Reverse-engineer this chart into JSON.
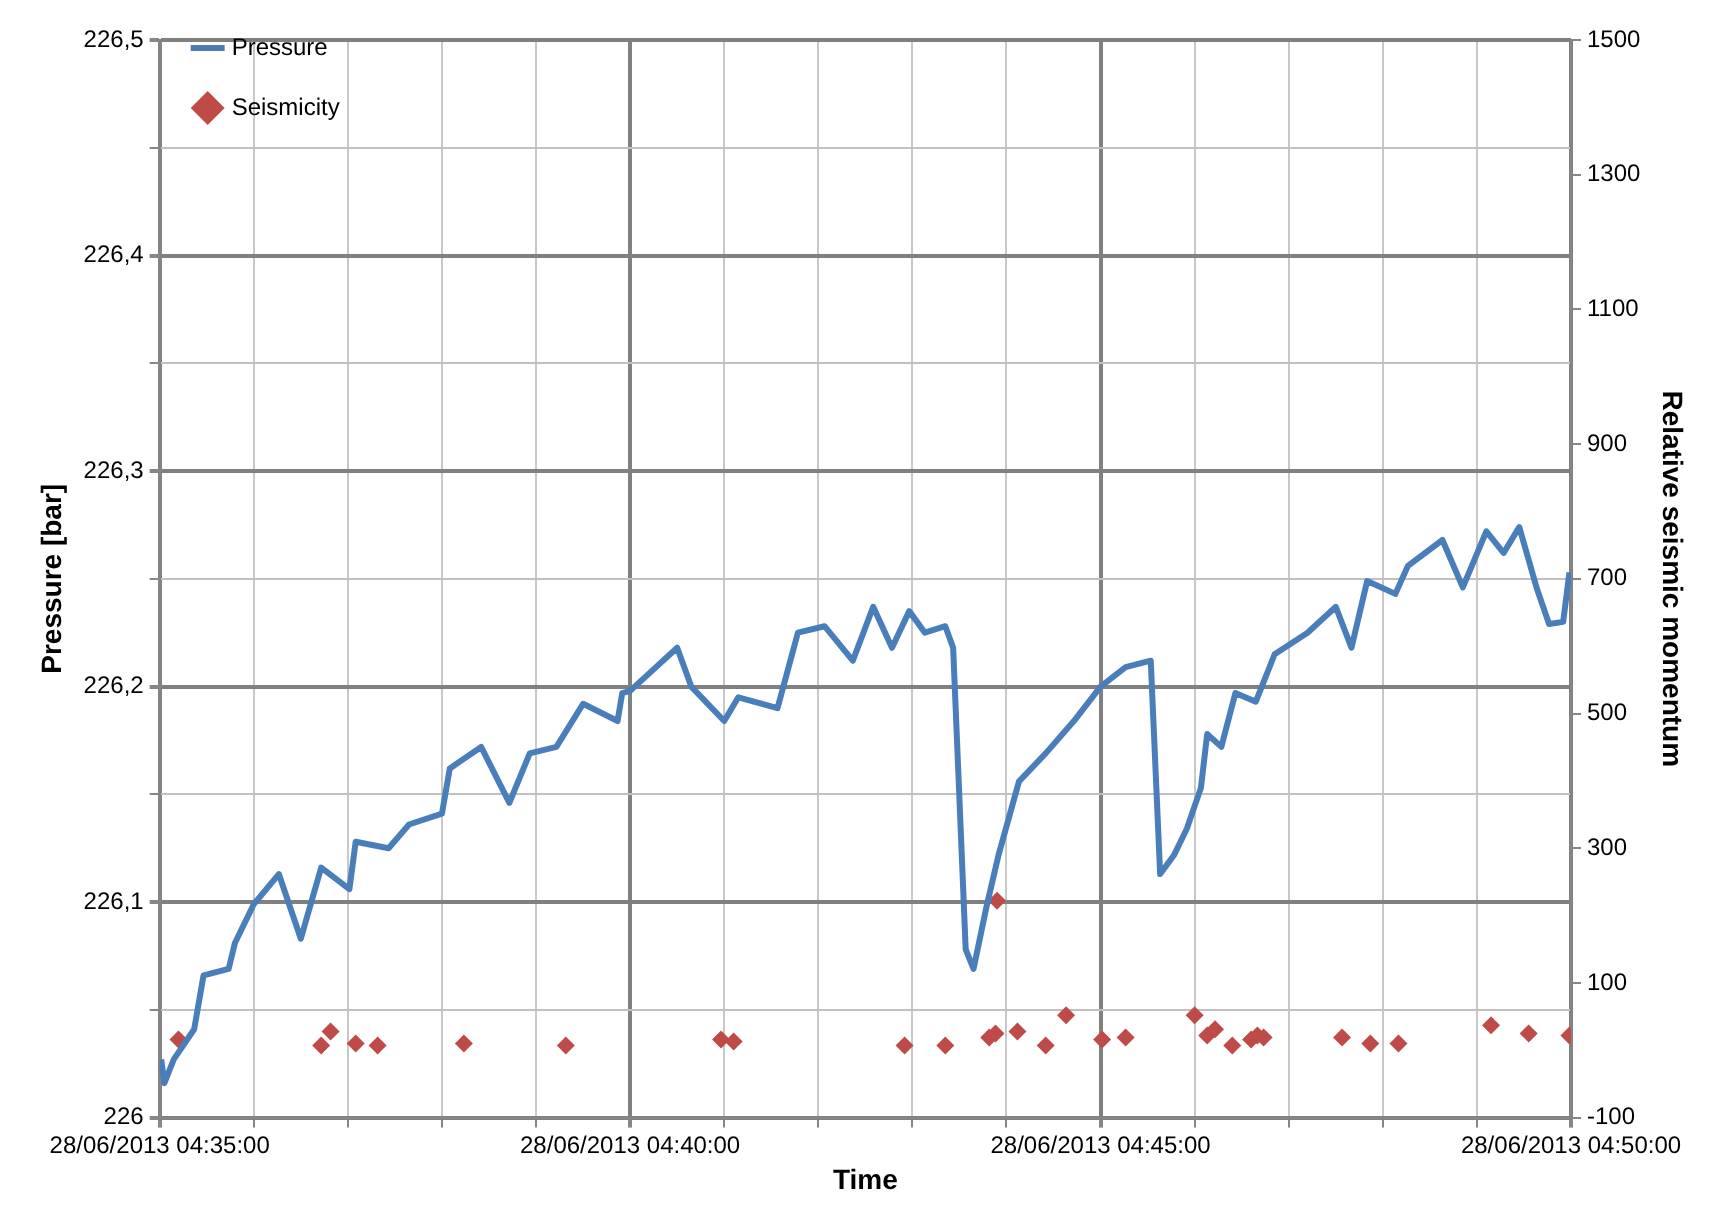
{
  "chart_data": {
    "type": "line",
    "xlabel": "Time",
    "ylabel": "Pressure [bar]",
    "y2label": "Relative seismic momentum",
    "xlim": [
      "2013-06-28T04:35",
      "2013-06-28T04:50"
    ],
    "xticks": [
      {
        "value": "2013-06-28T04:35",
        "label": "28/06/2013 04:35:00"
      },
      {
        "value": "2013-06-28T04:36",
        "label": null
      },
      {
        "value": "2013-06-28T04:37",
        "label": null
      },
      {
        "value": "2013-06-28T04:38",
        "label": null
      },
      {
        "value": "2013-06-28T04:39",
        "label": null
      },
      {
        "value": "2013-06-28T04:40",
        "label": "28/06/2013 04:40:00"
      },
      {
        "value": "2013-06-28T04:41",
        "label": null
      },
      {
        "value": "2013-06-28T04:42",
        "label": null
      },
      {
        "value": "2013-06-28T04:43",
        "label": null
      },
      {
        "value": "2013-06-28T04:44",
        "label": null
      },
      {
        "value": "2013-06-28T04:45",
        "label": "28/06/2013 04:45:00"
      },
      {
        "value": "2013-06-28T04:46",
        "label": null
      },
      {
        "value": "2013-06-28T04:47",
        "label": null
      },
      {
        "value": "2013-06-28T04:48",
        "label": null
      },
      {
        "value": "2013-06-28T04:49",
        "label": null
      },
      {
        "value": "2013-06-28T04:50",
        "label": "28/06/2013 04:50:00"
      }
    ],
    "ylim": [
      226,
      226.5
    ],
    "yticks": [
      226,
      {
        "value": 226.05,
        "label": null
      },
      {
        "value": 226.1,
        "label": "226,1"
      },
      {
        "value": 226.15,
        "label": null
      },
      {
        "value": 226.2,
        "label": "226,2"
      },
      {
        "value": 226.25,
        "label": null
      },
      {
        "value": 226.3,
        "label": "226,3"
      },
      {
        "value": 226.35,
        "label": null
      },
      {
        "value": 226.4,
        "label": "226,4"
      },
      {
        "value": 226.45,
        "label": null
      },
      {
        "value": 226.5,
        "label": "226,5"
      }
    ],
    "y2lim": [
      -100,
      1500
    ],
    "y2ticks": [
      -100,
      100,
      300,
      500,
      700,
      900,
      1100,
      1300,
      1500
    ],
    "grid": true,
    "legend": "top left",
    "series": [
      {
        "name": "Pressure",
        "type": "line",
        "color": "#4a7ebb",
        "marker": "none",
        "line_style": "solid",
        "x": [
          "2013-06-28T04:35:01",
          "2013-06-28T04:35:03",
          "2013-06-28T04:35:09",
          "2013-06-28T04:35:22",
          "2013-06-28T04:35:28",
          "2013-06-28T04:35:44",
          "2013-06-28T04:35:48",
          "2013-06-28T04:36:00",
          "2013-06-28T04:36:16",
          "2013-06-28T04:36:30",
          "2013-06-28T04:36:43",
          "2013-06-28T04:37:01",
          "2013-06-28T04:37:05",
          "2013-06-28T04:37:26",
          "2013-06-28T04:37:39",
          "2013-06-28T04:38:00",
          "2013-06-28T04:38:05",
          "2013-06-28T04:38:25",
          "2013-06-28T04:38:43",
          "2013-06-28T04:38:56",
          "2013-06-28T04:39:13",
          "2013-06-28T04:39:30",
          "2013-06-28T04:39:52",
          "2013-06-28T04:39:55",
          "2013-06-28T04:40:00",
          "2013-06-28T04:40:30",
          "2013-06-28T04:40:39",
          "2013-06-28T04:41:00",
          "2013-06-28T04:41:09",
          "2013-06-28T04:41:34",
          "2013-06-28T04:41:47",
          "2013-06-28T04:42:04",
          "2013-06-28T04:42:22",
          "2013-06-28T04:42:35",
          "2013-06-28T04:42:47",
          "2013-06-28T04:42:58",
          "2013-06-28T04:43:08",
          "2013-06-28T04:43:21",
          "2013-06-28T04:43:26",
          "2013-06-28T04:43:34",
          "2013-06-28T04:43:39",
          "2013-06-28T04:43:47",
          "2013-06-28T04:43:55",
          "2013-06-28T04:44:08",
          "2013-06-28T04:44:25",
          "2013-06-28T04:44:43",
          "2013-06-28T04:45:00",
          "2013-06-28T04:45:16",
          "2013-06-28T04:45:32",
          "2013-06-28T04:45:38",
          "2013-06-28T04:45:47",
          "2013-06-28T04:45:55",
          "2013-06-28T04:46:04",
          "2013-06-28T04:46:08",
          "2013-06-28T04:46:17",
          "2013-06-28T04:46:26",
          "2013-06-28T04:46:39",
          "2013-06-28T04:46:51",
          "2013-06-28T04:47:12",
          "2013-06-28T04:47:30",
          "2013-06-28T04:47:40",
          "2013-06-28T04:47:50",
          "2013-06-28T04:48:08",
          "2013-06-28T04:48:16",
          "2013-06-28T04:48:38",
          "2013-06-28T04:48:51",
          "2013-06-28T04:49:06",
          "2013-06-28T04:49:17",
          "2013-06-28T04:49:27",
          "2013-06-28T04:49:38",
          "2013-06-28T04:49:46",
          "2013-06-28T04:49:55",
          "2013-06-28T04:49:59"
        ],
        "values": [
          226.027,
          226.016,
          226.027,
          226.041,
          226.066,
          226.069,
          226.081,
          226.099,
          226.113,
          226.083,
          226.116,
          226.106,
          226.128,
          226.125,
          226.136,
          226.141,
          226.162,
          226.172,
          226.146,
          226.169,
          226.172,
          226.192,
          226.184,
          226.197,
          226.198,
          226.218,
          226.2,
          226.184,
          226.195,
          226.19,
          226.225,
          226.228,
          226.212,
          226.237,
          226.218,
          226.235,
          226.225,
          226.228,
          226.218,
          226.078,
          226.069,
          226.097,
          226.122,
          226.156,
          226.169,
          226.184,
          226.2,
          226.209,
          226.212,
          226.113,
          226.122,
          226.134,
          226.153,
          226.178,
          226.172,
          226.197,
          226.193,
          226.215,
          226.225,
          226.237,
          226.218,
          226.249,
          226.243,
          226.256,
          226.268,
          226.246,
          226.272,
          226.262,
          226.274,
          226.246,
          226.229,
          226.23,
          226.253
        ]
      },
      {
        "name": "Seismicity",
        "type": "scatter",
        "axis": "y2",
        "color": "#be4b48",
        "marker": "diamond",
        "x": [
          "2013-06-28T04:35:12",
          "2013-06-28T04:36:43",
          "2013-06-28T04:36:49",
          "2013-06-28T04:37:05",
          "2013-06-28T04:37:19",
          "2013-06-28T04:38:14",
          "2013-06-28T04:39:19",
          "2013-06-28T04:40:58",
          "2013-06-28T04:41:06",
          "2013-06-28T04:42:55",
          "2013-06-28T04:43:21",
          "2013-06-28T04:43:49",
          "2013-06-28T04:43:53",
          "2013-06-28T04:43:54",
          "2013-06-28T04:44:07",
          "2013-06-28T04:44:25",
          "2013-06-28T04:44:38",
          "2013-06-28T04:45:01",
          "2013-06-28T04:45:16",
          "2013-06-28T04:46:00",
          "2013-06-28T04:46:08",
          "2013-06-28T04:46:13",
          "2013-06-28T04:46:24",
          "2013-06-28T04:46:36",
          "2013-06-28T04:46:40",
          "2013-06-28T04:46:44",
          "2013-06-28T04:47:34",
          "2013-06-28T04:47:52",
          "2013-06-28T04:48:10",
          "2013-06-28T04:49:09",
          "2013-06-28T04:49:33",
          "2013-06-28T04:49:59"
        ],
        "values": [
          16,
          7,
          28,
          10,
          7,
          10,
          7,
          16,
          13,
          7,
          7,
          19,
          25,
          222,
          28,
          7,
          52,
          16,
          19,
          52,
          22,
          31,
          7,
          16,
          22,
          19,
          19,
          10,
          10,
          37,
          25,
          22
        ]
      }
    ]
  }
}
